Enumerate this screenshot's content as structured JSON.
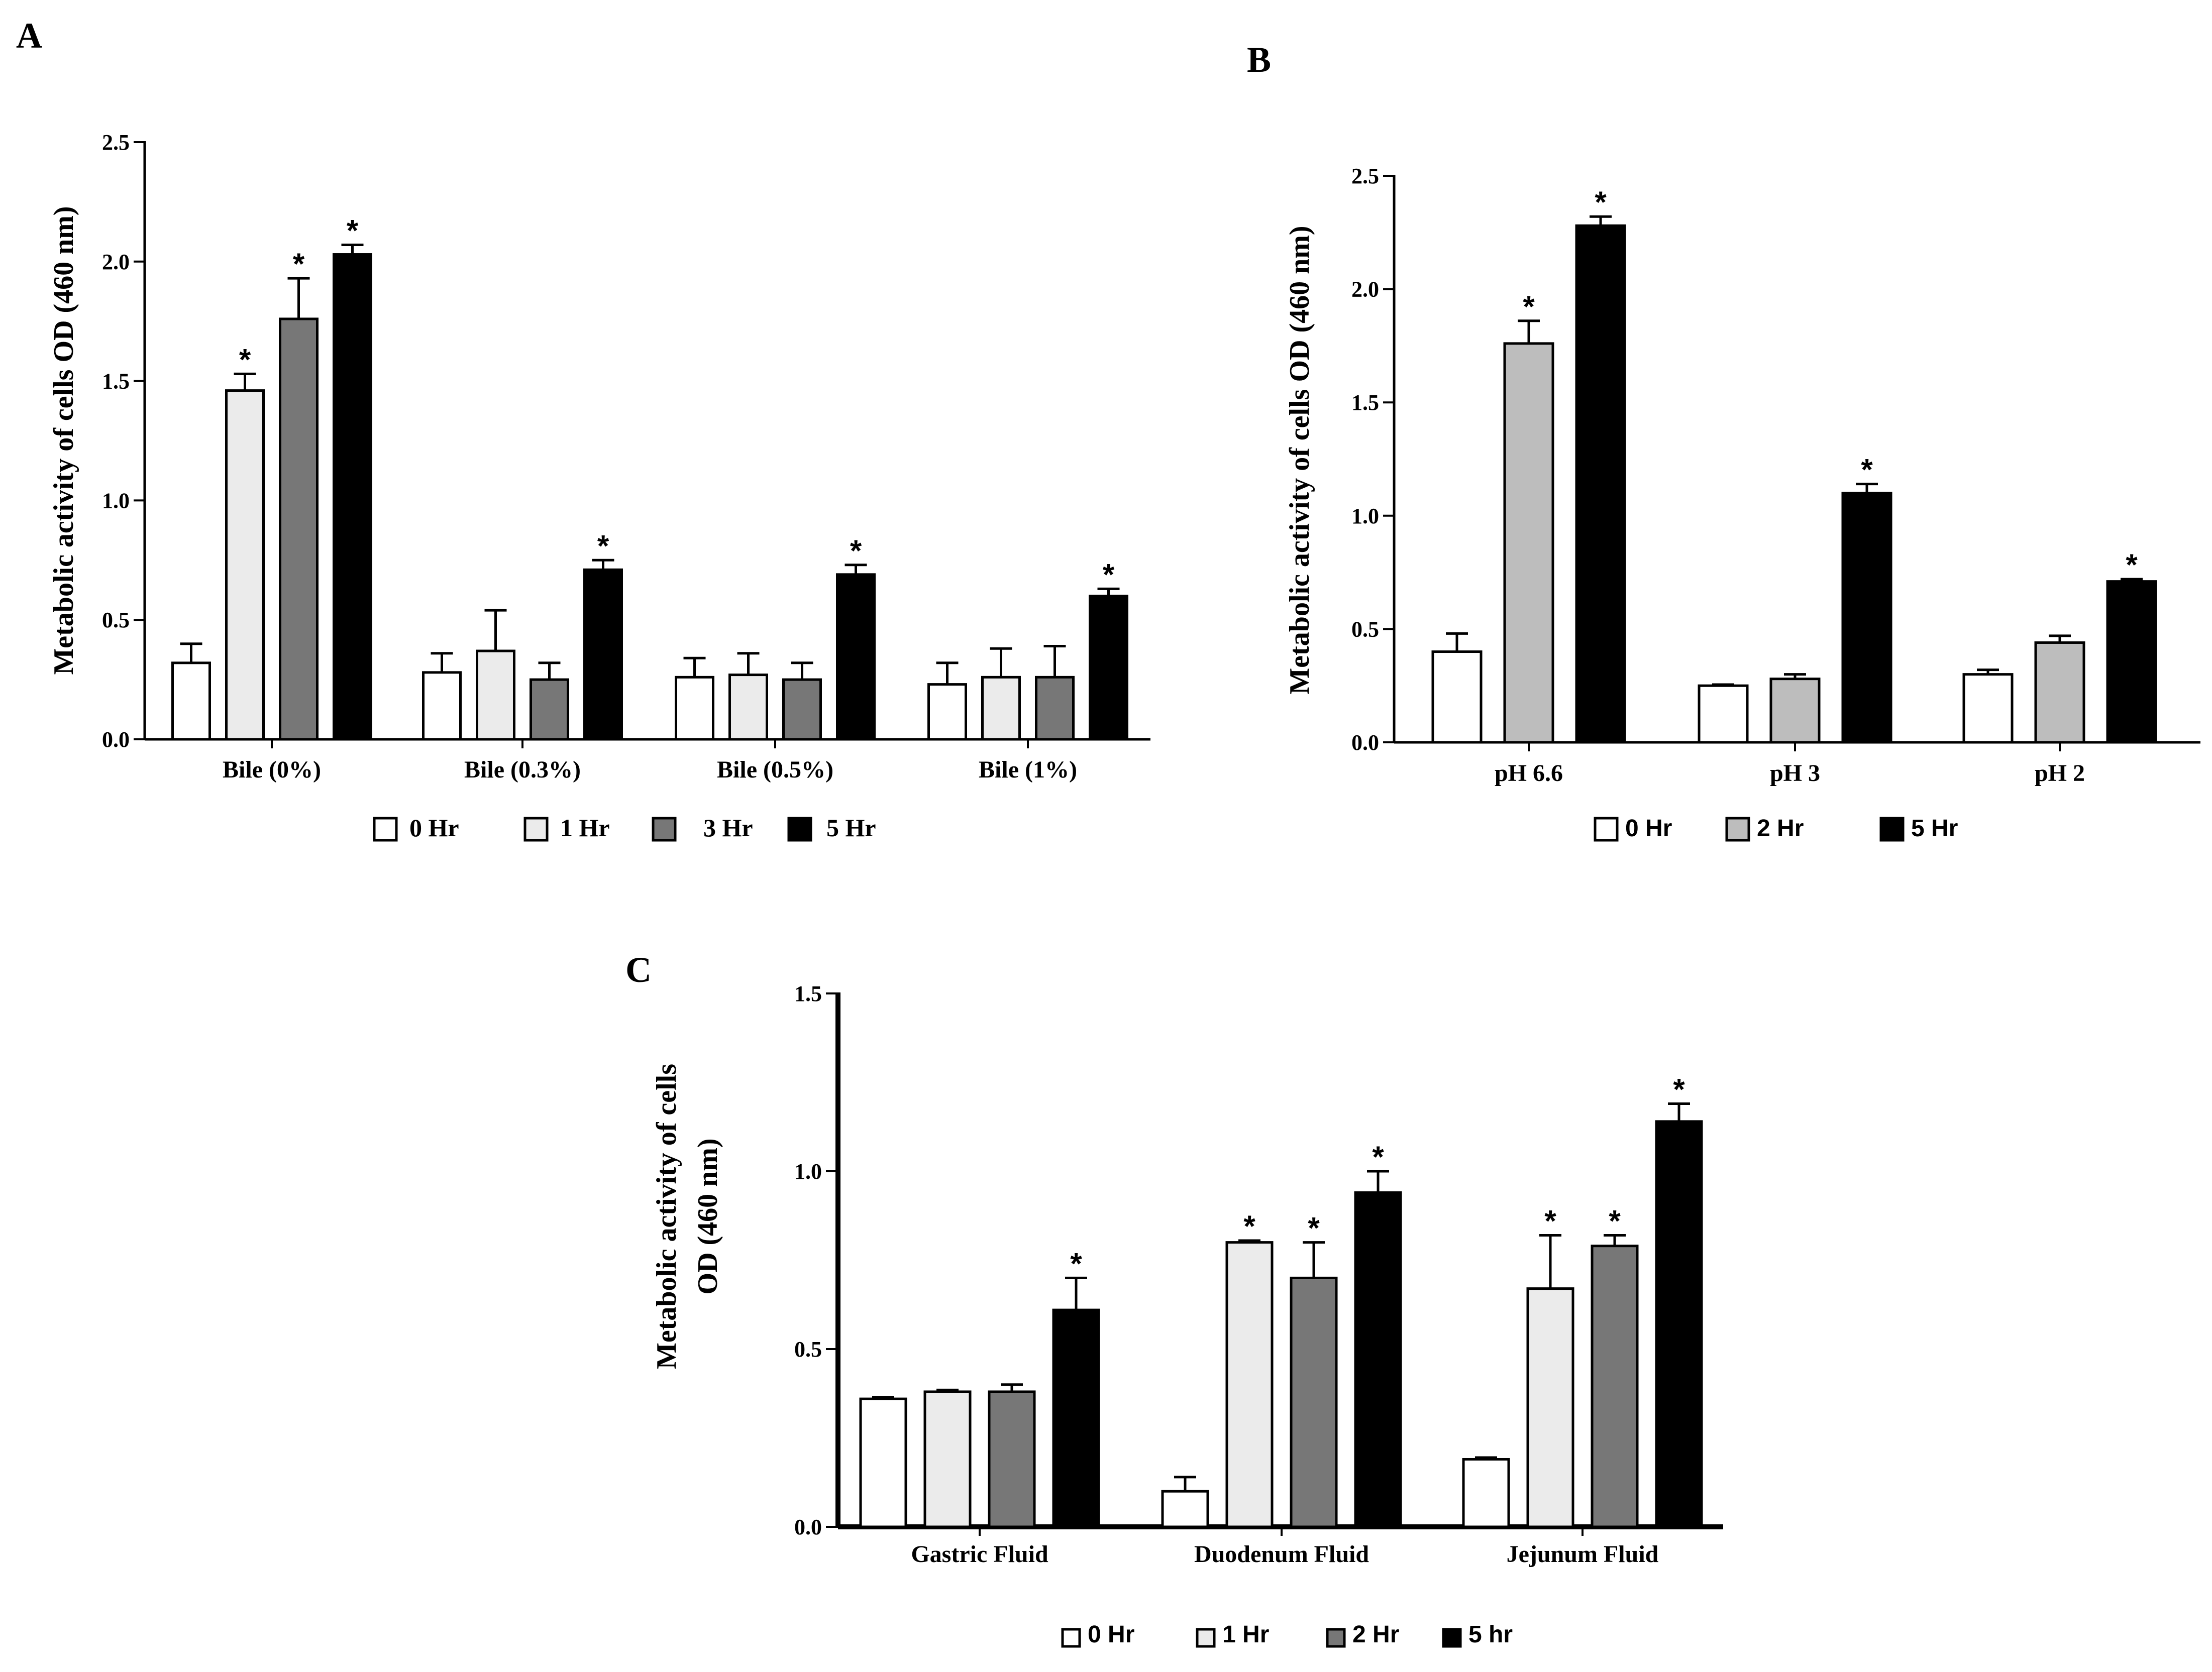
{
  "chart_data": [
    {
      "panel": "A",
      "type": "bar",
      "title": "",
      "xlabel": "",
      "ylabel": "Metabolic activity  of cells OD (460 nm)",
      "ylim": [
        0,
        2.5
      ],
      "yticks": [
        "0.0",
        "0.5",
        "1.0",
        "1.5",
        "2.0",
        "2.5"
      ],
      "categories": [
        "Bile (0%)",
        "Bile (0.3%)",
        "Bile (0.5%)",
        "Bile (1%)"
      ],
      "series": [
        {
          "name": "0 Hr",
          "color": "#ffffff",
          "values": [
            0.32,
            0.28,
            0.26,
            0.23
          ],
          "errors": [
            0.08,
            0.08,
            0.08,
            0.09
          ],
          "stars": [
            false,
            false,
            false,
            false
          ]
        },
        {
          "name": "1 Hr",
          "color": "#ebebeb",
          "values": [
            1.46,
            0.37,
            0.27,
            0.26
          ],
          "errors": [
            0.07,
            0.17,
            0.09,
            0.12
          ],
          "stars": [
            true,
            false,
            false,
            false
          ]
        },
        {
          "name": "3 Hr",
          "color": "#777777",
          "values": [
            1.76,
            0.25,
            0.25,
            0.26
          ],
          "errors": [
            0.17,
            0.07,
            0.07,
            0.13
          ],
          "stars": [
            true,
            false,
            false,
            false
          ]
        },
        {
          "name": "5 Hr",
          "color": "#000000",
          "values": [
            2.03,
            0.71,
            0.69,
            0.6
          ],
          "errors": [
            0.04,
            0.04,
            0.04,
            0.03
          ],
          "stars": [
            true,
            true,
            true,
            true
          ]
        }
      ],
      "legend": "bottom",
      "legend_labels": [
        "0 Hr",
        "1 Hr",
        "3 Hr",
        "5 Hr"
      ]
    },
    {
      "panel": "B",
      "type": "bar",
      "title": "",
      "xlabel": "",
      "ylabel": "Metabolic activity of cells OD (460 nm)",
      "ylim": [
        0,
        2.5
      ],
      "yticks": [
        "0.0",
        "0.5",
        "1.0",
        "1.5",
        "2.0",
        "2.5"
      ],
      "categories": [
        "pH 6.6",
        "pH 3",
        "pH 2"
      ],
      "series": [
        {
          "name": "0 Hr",
          "color": "#ffffff",
          "values": [
            0.4,
            0.25,
            0.3
          ],
          "errors": [
            0.08,
            0.005,
            0.02
          ],
          "stars": [
            false,
            false,
            false
          ]
        },
        {
          "name": "2 Hr",
          "color": "#bdbdbd",
          "values": [
            1.76,
            0.28,
            0.44
          ],
          "errors": [
            0.1,
            0.02,
            0.03
          ],
          "stars": [
            true,
            false,
            false
          ]
        },
        {
          "name": "5 Hr",
          "color": "#000000",
          "values": [
            2.28,
            1.1,
            0.71
          ],
          "errors": [
            0.04,
            0.04,
            0.01
          ],
          "stars": [
            true,
            true,
            true
          ]
        }
      ],
      "legend": "bottom",
      "legend_labels": [
        "0 Hr",
        "2 Hr",
        "5 Hr"
      ]
    },
    {
      "panel": "C",
      "type": "bar",
      "title": "",
      "xlabel": "",
      "ylabel_lines": [
        "Metabolic activity of cells",
        "OD (460 nm)"
      ],
      "ylim": [
        0,
        1.5
      ],
      "yticks": [
        "0.0",
        "0.5",
        "1.0",
        "1.5"
      ],
      "categories": [
        "Gastric Fluid",
        "Duodenum Fluid",
        "Jejunum Fluid"
      ],
      "series": [
        {
          "name": "0 Hr",
          "color": "#ffffff",
          "values": [
            0.36,
            0.1,
            0.19
          ],
          "errors": [
            0.005,
            0.04,
            0.005
          ],
          "stars": [
            false,
            false,
            false
          ]
        },
        {
          "name": "1 Hr",
          "color": "#ebebeb",
          "values": [
            0.38,
            0.8,
            0.67
          ],
          "errors": [
            0.005,
            0.005,
            0.15
          ],
          "stars": [
            false,
            true,
            true
          ]
        },
        {
          "name": "2 Hr",
          "color": "#777777",
          "values": [
            0.38,
            0.7,
            0.79
          ],
          "errors": [
            0.02,
            0.1,
            0.03
          ],
          "stars": [
            false,
            true,
            true
          ]
        },
        {
          "name": "5 hr",
          "color": "#000000",
          "values": [
            0.61,
            0.94,
            1.14
          ],
          "errors": [
            0.09,
            0.06,
            0.05
          ],
          "stars": [
            true,
            true,
            true
          ]
        }
      ],
      "legend": "bottom",
      "legend_labels": [
        "0 Hr",
        "1 Hr",
        "2 Hr",
        "5 hr"
      ]
    }
  ],
  "panels": {
    "a": {
      "letter": "A"
    },
    "b": {
      "letter": "B"
    },
    "c": {
      "letter": "C"
    }
  },
  "significance_marker": "*"
}
